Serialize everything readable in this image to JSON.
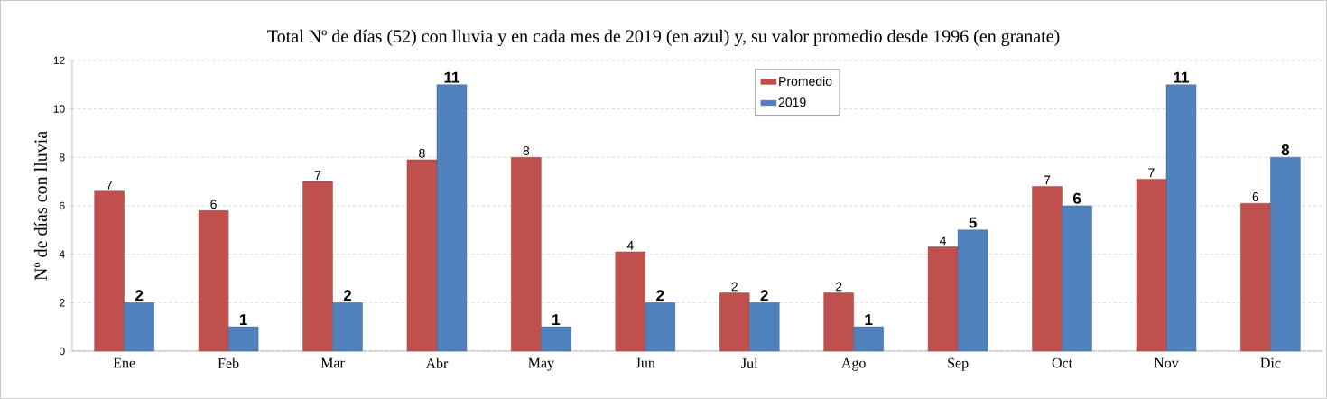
{
  "chart_data": {
    "type": "bar",
    "title": "Total Nº de días (52) con lluvia y en cada mes de 2019 (en azul) y, su valor promedio desde 1996 (en granate)",
    "ylabel": "Nº de días con lluvia",
    "categories": [
      "Ene",
      "Feb",
      "Mar",
      "Abr",
      "May",
      "Jun",
      "Jul",
      "Ago",
      "Sep",
      "Oct",
      "Nov",
      "Dic"
    ],
    "series": [
      {
        "name": "Promedio",
        "color": "#c0504d",
        "values": [
          6.6,
          5.8,
          7.0,
          7.9,
          8.0,
          4.1,
          2.4,
          2.4,
          4.3,
          6.8,
          7.1,
          6.1
        ],
        "value_labels": [
          "7",
          "6",
          "7",
          "8",
          "8",
          "4",
          "2",
          "2",
          "4",
          "7",
          "7",
          "6"
        ]
      },
      {
        "name": "2019",
        "color": "#4f81bd",
        "values": [
          2,
          1,
          2,
          11,
          1,
          2,
          2,
          1,
          5,
          6,
          11,
          8
        ],
        "value_labels": [
          "2",
          "1",
          "2",
          "11",
          "1",
          "2",
          "2",
          "1",
          "5",
          "6",
          "11",
          "8"
        ]
      }
    ],
    "ylim": [
      0,
      12
    ],
    "yticks": [
      0,
      2,
      4,
      6,
      8,
      10,
      12
    ],
    "grid": "y",
    "legend": "top"
  }
}
